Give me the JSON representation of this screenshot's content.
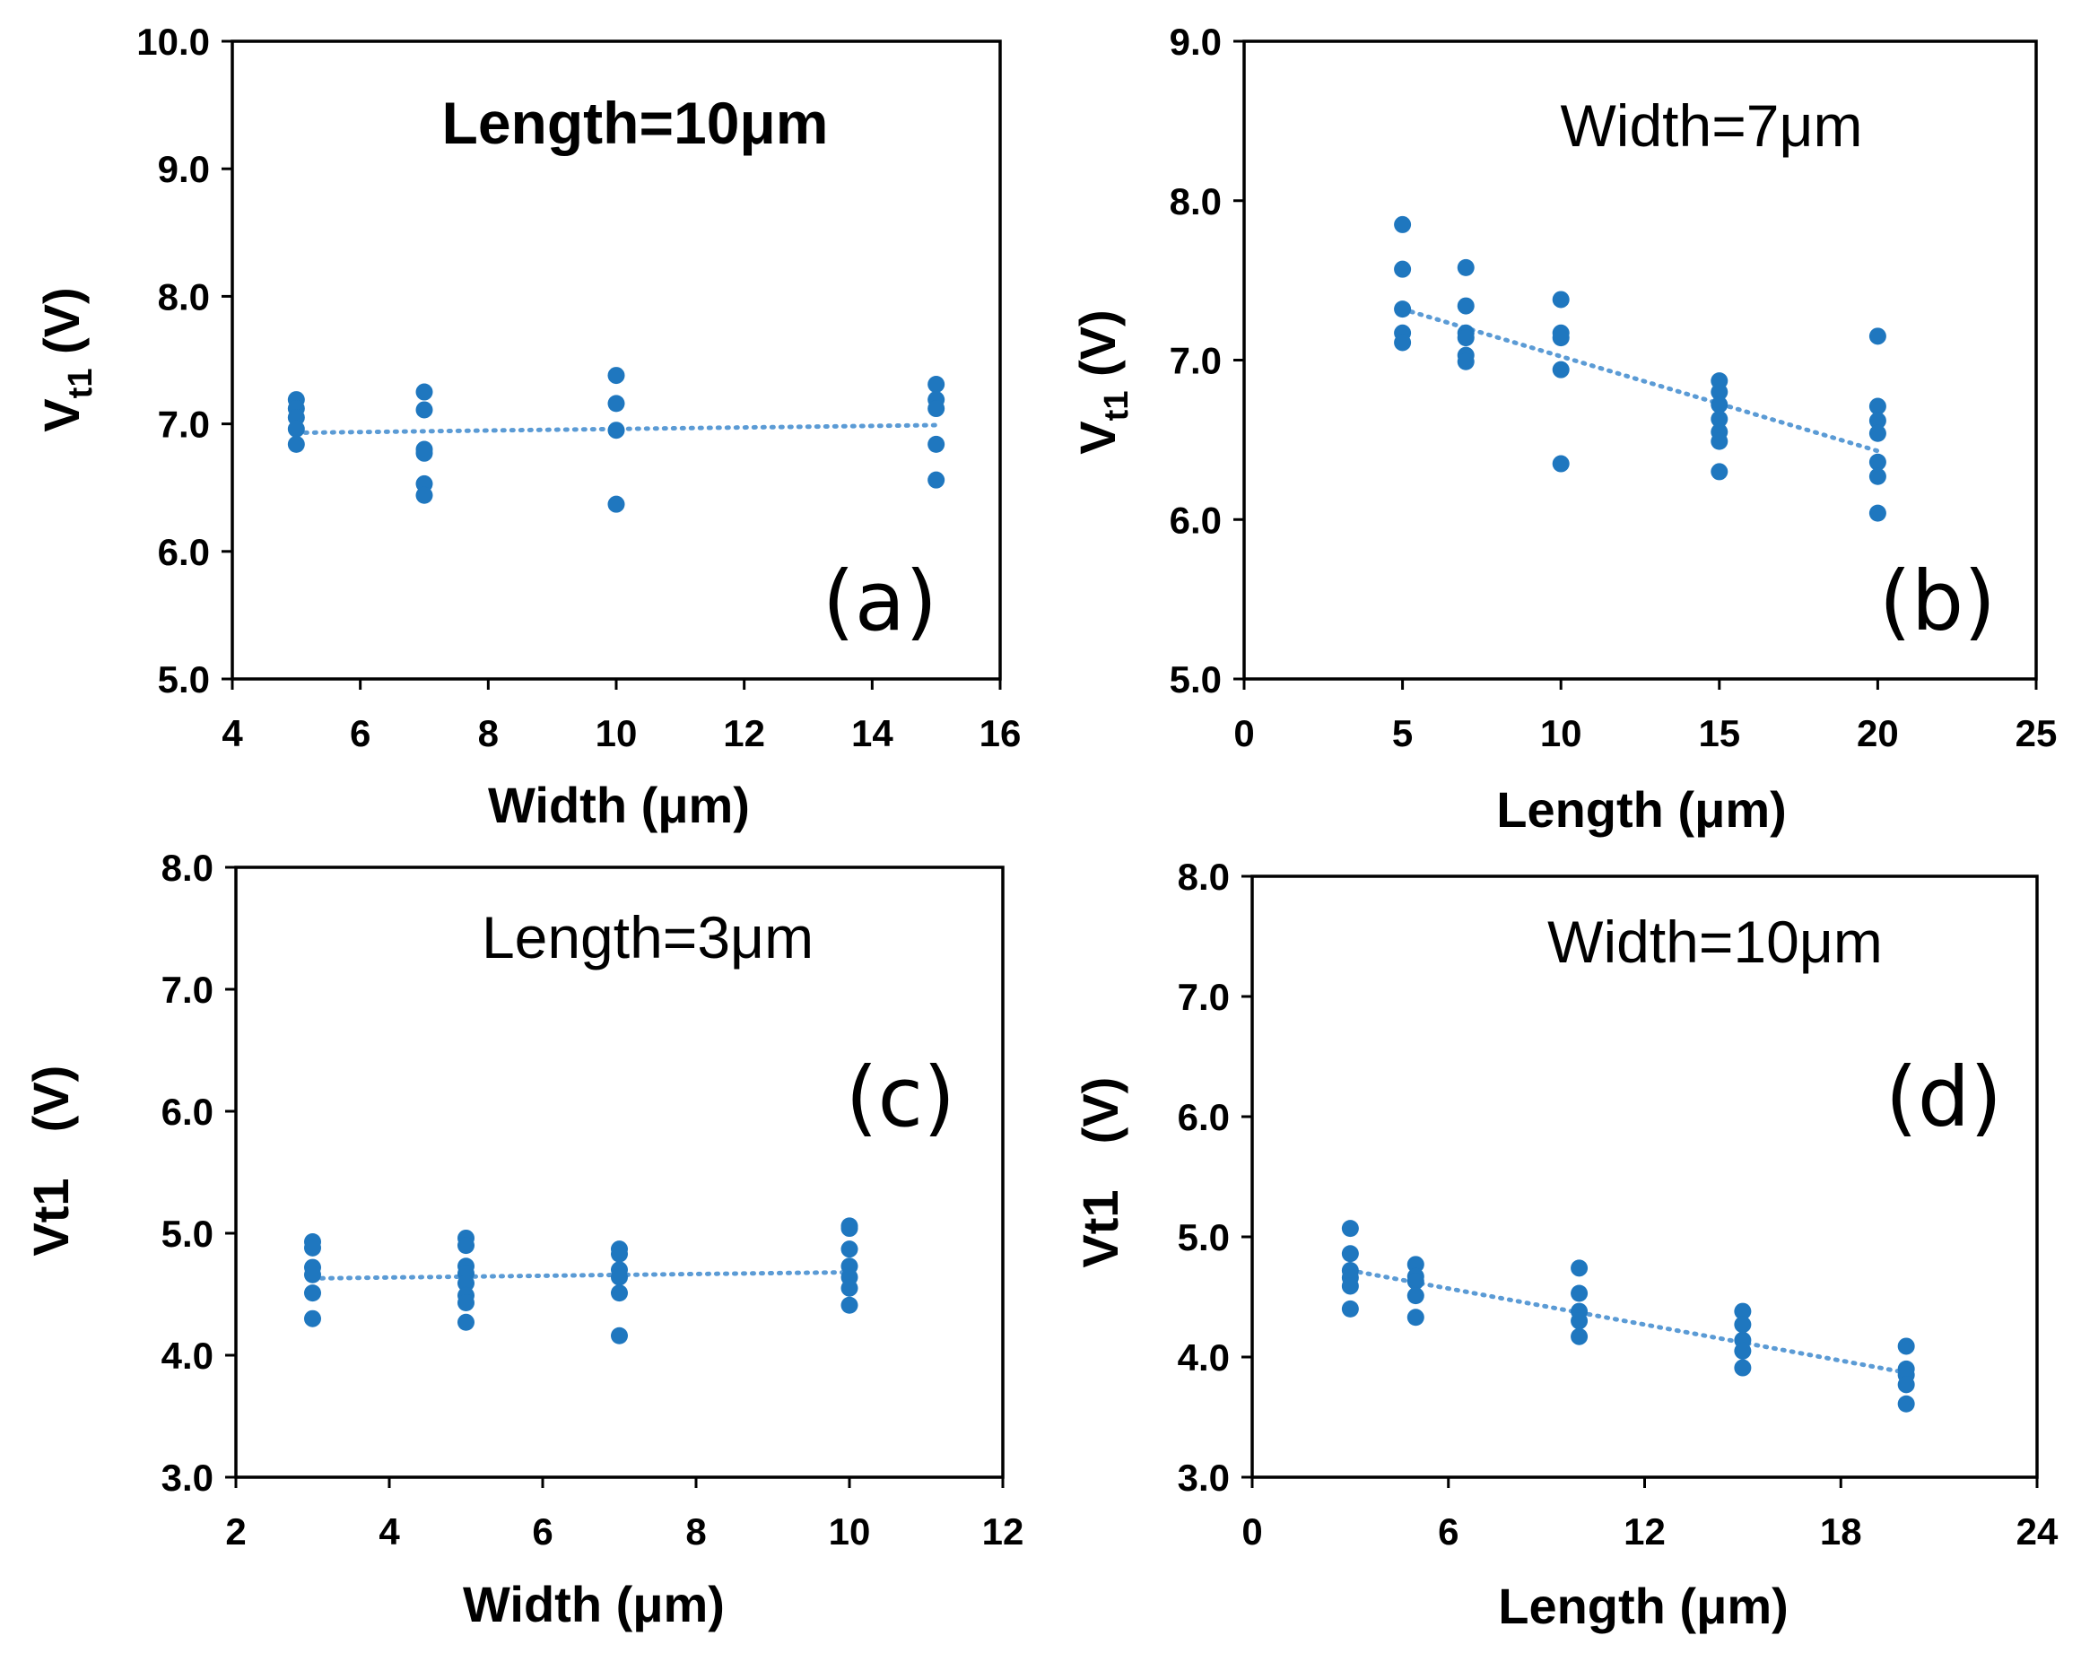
{
  "chart_data": [
    {
      "id": "a",
      "type": "scatter",
      "title": "Length=10μm",
      "panel_label": "(a)",
      "xlabel": "Width (μm)",
      "ylabel_main": "V",
      "ylabel_sub": "t1",
      "ylabel_unit": " (V)",
      "xlim": [
        4,
        16
      ],
      "ylim": [
        5.0,
        10.0
      ],
      "xticks": [
        4,
        6,
        8,
        10,
        12,
        14,
        16
      ],
      "yticks": [
        5.0,
        6.0,
        7.0,
        8.0,
        9.0,
        10.0
      ],
      "ytick_decimals": 1,
      "points": [
        {
          "x": 5,
          "y": 7.19
        },
        {
          "x": 5,
          "y": 7.12
        },
        {
          "x": 5,
          "y": 7.05
        },
        {
          "x": 5,
          "y": 6.96
        },
        {
          "x": 5,
          "y": 6.84
        },
        {
          "x": 7,
          "y": 7.25
        },
        {
          "x": 7,
          "y": 7.11
        },
        {
          "x": 7,
          "y": 6.8
        },
        {
          "x": 7,
          "y": 6.77
        },
        {
          "x": 7,
          "y": 6.53
        },
        {
          "x": 7,
          "y": 6.44
        },
        {
          "x": 10,
          "y": 7.38
        },
        {
          "x": 10,
          "y": 7.16
        },
        {
          "x": 10,
          "y": 6.95
        },
        {
          "x": 10,
          "y": 6.37
        },
        {
          "x": 15,
          "y": 7.31
        },
        {
          "x": 15,
          "y": 7.19
        },
        {
          "x": 15,
          "y": 7.12
        },
        {
          "x": 15,
          "y": 6.84
        },
        {
          "x": 15,
          "y": 6.56
        }
      ],
      "trendline": {
        "x": [
          5,
          15
        ],
        "y": [
          6.93,
          6.99
        ]
      }
    },
    {
      "id": "b",
      "type": "scatter",
      "title": "Width=7μm",
      "panel_label": "(b)",
      "xlabel": "Length (μm)",
      "ylabel_main": "V",
      "ylabel_sub": "t1",
      "ylabel_unit": " (V)",
      "xlim": [
        0,
        25
      ],
      "ylim": [
        5.0,
        9.0
      ],
      "xticks": [
        0,
        5,
        10,
        15,
        20,
        25
      ],
      "yticks": [
        5.0,
        6.0,
        7.0,
        8.0,
        9.0
      ],
      "ytick_decimals": 1,
      "points": [
        {
          "x": 5,
          "y": 7.85
        },
        {
          "x": 5,
          "y": 7.57
        },
        {
          "x": 5,
          "y": 7.32
        },
        {
          "x": 5,
          "y": 7.17
        },
        {
          "x": 5,
          "y": 7.11
        },
        {
          "x": 7,
          "y": 7.58
        },
        {
          "x": 7,
          "y": 7.34
        },
        {
          "x": 7,
          "y": 7.17
        },
        {
          "x": 7,
          "y": 7.14
        },
        {
          "x": 7,
          "y": 7.03
        },
        {
          "x": 7,
          "y": 6.99
        },
        {
          "x": 10,
          "y": 7.38
        },
        {
          "x": 10,
          "y": 7.17
        },
        {
          "x": 10,
          "y": 7.14
        },
        {
          "x": 10,
          "y": 6.94
        },
        {
          "x": 10,
          "y": 6.35
        },
        {
          "x": 15,
          "y": 6.87
        },
        {
          "x": 15,
          "y": 6.8
        },
        {
          "x": 15,
          "y": 6.72
        },
        {
          "x": 15,
          "y": 6.63
        },
        {
          "x": 15,
          "y": 6.55
        },
        {
          "x": 15,
          "y": 6.49
        },
        {
          "x": 15,
          "y": 6.3
        },
        {
          "x": 20,
          "y": 7.15
        },
        {
          "x": 20,
          "y": 6.71
        },
        {
          "x": 20,
          "y": 6.62
        },
        {
          "x": 20,
          "y": 6.54
        },
        {
          "x": 20,
          "y": 6.36
        },
        {
          "x": 20,
          "y": 6.27
        },
        {
          "x": 20,
          "y": 6.04
        }
      ],
      "trendline": {
        "x": [
          5,
          20
        ],
        "y": [
          7.32,
          6.43
        ]
      }
    },
    {
      "id": "c",
      "type": "scatter",
      "title": "Length=3μm",
      "panel_label": "(c)",
      "xlabel": "Width (μm)",
      "ylabel_main": "Vt1",
      "ylabel_sub": "",
      "ylabel_unit": " (V)",
      "xlim": [
        2,
        12
      ],
      "ylim": [
        3.0,
        8.0
      ],
      "xticks": [
        2,
        4,
        6,
        8,
        10,
        12
      ],
      "yticks": [
        3.0,
        4.0,
        5.0,
        6.0,
        7.0,
        8.0
      ],
      "ytick_decimals": 1,
      "points": [
        {
          "x": 3,
          "y": 4.93
        },
        {
          "x": 3,
          "y": 4.88
        },
        {
          "x": 3,
          "y": 4.72
        },
        {
          "x": 3,
          "y": 4.66
        },
        {
          "x": 3,
          "y": 4.51
        },
        {
          "x": 3,
          "y": 4.3
        },
        {
          "x": 5,
          "y": 4.96
        },
        {
          "x": 5,
          "y": 4.9
        },
        {
          "x": 5,
          "y": 4.73
        },
        {
          "x": 5,
          "y": 4.67
        },
        {
          "x": 5,
          "y": 4.59
        },
        {
          "x": 5,
          "y": 4.49
        },
        {
          "x": 5,
          "y": 4.43
        },
        {
          "x": 5,
          "y": 4.27
        },
        {
          "x": 7,
          "y": 4.87
        },
        {
          "x": 7,
          "y": 4.83
        },
        {
          "x": 7,
          "y": 4.7
        },
        {
          "x": 7,
          "y": 4.64
        },
        {
          "x": 7,
          "y": 4.51
        },
        {
          "x": 7,
          "y": 4.16
        },
        {
          "x": 10,
          "y": 5.06
        },
        {
          "x": 10,
          "y": 5.04
        },
        {
          "x": 10,
          "y": 4.87
        },
        {
          "x": 10,
          "y": 4.73
        },
        {
          "x": 10,
          "y": 4.64
        },
        {
          "x": 10,
          "y": 4.55
        },
        {
          "x": 10,
          "y": 4.41
        }
      ],
      "trendline": {
        "x": [
          3,
          10
        ],
        "y": [
          4.63,
          4.68
        ]
      }
    },
    {
      "id": "d",
      "type": "scatter",
      "title": "Width=10μm",
      "panel_label": "(d)",
      "xlabel": "Length (μm)",
      "ylabel_main": "Vt1",
      "ylabel_sub": "",
      "ylabel_unit": " (V)",
      "xlim": [
        0,
        24
      ],
      "ylim": [
        3.0,
        8.0
      ],
      "xticks": [
        0,
        6,
        12,
        18,
        24
      ],
      "yticks": [
        3.0,
        4.0,
        5.0,
        6.0,
        7.0,
        8.0
      ],
      "ytick_decimals": 1,
      "points": [
        {
          "x": 3,
          "y": 5.07
        },
        {
          "x": 3,
          "y": 4.86
        },
        {
          "x": 3,
          "y": 4.72
        },
        {
          "x": 3,
          "y": 4.66
        },
        {
          "x": 3,
          "y": 4.59
        },
        {
          "x": 3,
          "y": 4.4
        },
        {
          "x": 5,
          "y": 4.77
        },
        {
          "x": 5,
          "y": 4.67
        },
        {
          "x": 5,
          "y": 4.63
        },
        {
          "x": 5,
          "y": 4.51
        },
        {
          "x": 5,
          "y": 4.33
        },
        {
          "x": 10,
          "y": 4.74
        },
        {
          "x": 10,
          "y": 4.53
        },
        {
          "x": 10,
          "y": 4.38
        },
        {
          "x": 10,
          "y": 4.3
        },
        {
          "x": 10,
          "y": 4.17
        },
        {
          "x": 15,
          "y": 4.38
        },
        {
          "x": 15,
          "y": 4.27
        },
        {
          "x": 15,
          "y": 4.14
        },
        {
          "x": 15,
          "y": 4.05
        },
        {
          "x": 15,
          "y": 3.91
        },
        {
          "x": 20,
          "y": 4.09
        },
        {
          "x": 20,
          "y": 3.9
        },
        {
          "x": 20,
          "y": 3.85
        },
        {
          "x": 20,
          "y": 3.77
        },
        {
          "x": 20,
          "y": 3.61
        }
      ],
      "trendline": {
        "x": [
          3,
          20
        ],
        "y": [
          4.72,
          3.87
        ]
      }
    }
  ]
}
